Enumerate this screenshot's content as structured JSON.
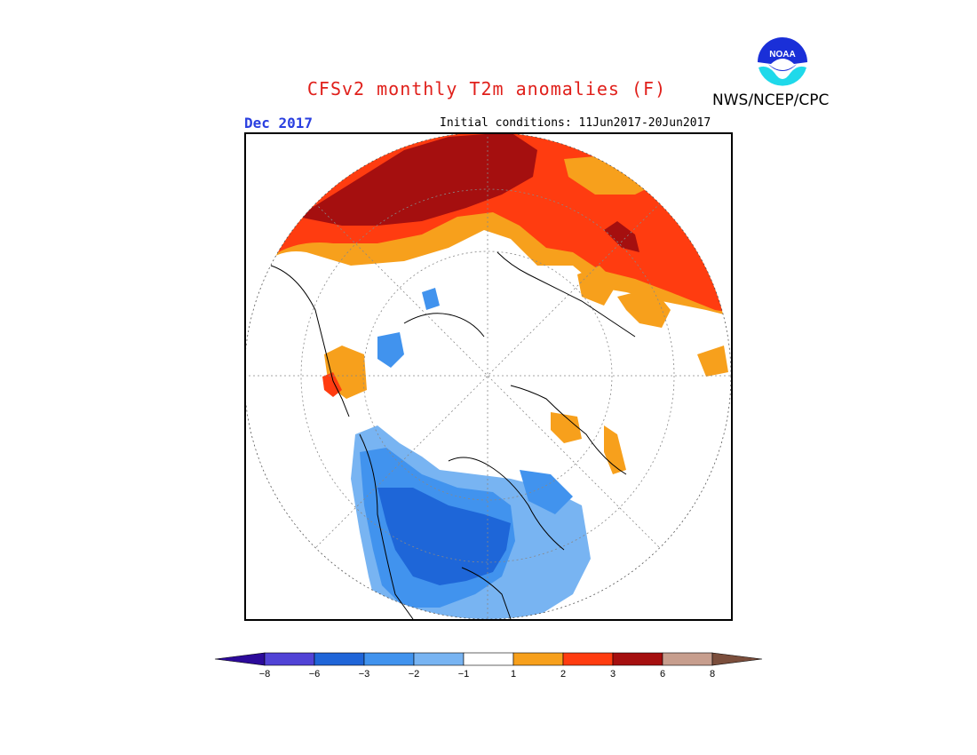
{
  "title": "CFSv2 monthly T2m anomalies (F)",
  "month": "Dec 2017",
  "initial_conditions": "Initial conditions: 11Jun2017-20Jun2017",
  "agency": "NWS/NCEP/CPC",
  "logo": {
    "text": "NOAA",
    "icon": "noaa-logo-icon"
  },
  "colors": {
    "title": "#e0201b",
    "month": "#2a3fe0",
    "dark_red": "#a50f0f",
    "red": "#ff3c10",
    "orange": "#f7a01c",
    "light_blue": "#78b4f2",
    "mid_blue": "#4193ee",
    "blue": "#1e66d8",
    "land_outline": "#000000"
  },
  "colorbar": {
    "tick_labels": [
      "−8",
      "−6",
      "−3",
      "−2",
      "−1",
      "1",
      "2",
      "3",
      "6",
      "8"
    ],
    "colors": [
      "#2c0a9a",
      "#5143d6",
      "#1f65d8",
      "#4193ee",
      "#78b4f2",
      "#ffffff",
      "#f7a01c",
      "#ff3c10",
      "#a50f0f",
      "#c79e8e",
      "#7b4e3c"
    ]
  }
}
